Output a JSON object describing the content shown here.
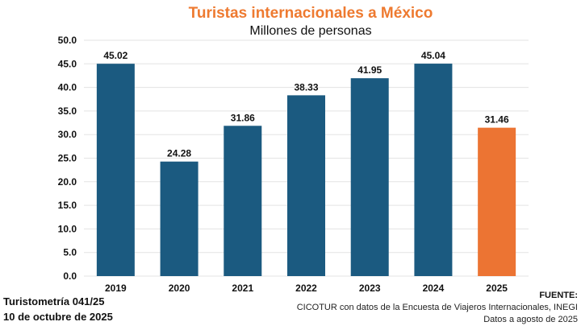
{
  "chart_data": {
    "type": "bar",
    "title": "Turistas internacionales a México",
    "subtitle": "Millones de personas",
    "categories": [
      "2019",
      "2020",
      "2021",
      "2022",
      "2023",
      "2024",
      "2025"
    ],
    "values": [
      45.02,
      24.28,
      31.86,
      38.33,
      41.95,
      45.04,
      31.46
    ],
    "value_labels": [
      "45.02",
      "24.28",
      "31.86",
      "38.33",
      "41.95",
      "45.04",
      "31.46"
    ],
    "ylim": [
      0,
      50
    ],
    "yticks": [
      "0.0",
      "5.0",
      "10.0",
      "15.0",
      "20.0",
      "25.0",
      "30.0",
      "35.0",
      "40.0",
      "45.0",
      "50.0"
    ],
    "grid": true,
    "colors": {
      "default": "#1b5a80",
      "highlight": "#ec7433",
      "title": "#ee7a30"
    },
    "highlight_index": 6
  },
  "footer": {
    "left_line1": "Turistometría 041/25",
    "left_line2": "10 de octubre de 2025",
    "source_label": "FUENTE:",
    "source_line1": "CICOTUR con datos de la Encuesta de Viajeros Internacionales, INEGI",
    "source_line2": "Datos a agosto de 2025"
  }
}
